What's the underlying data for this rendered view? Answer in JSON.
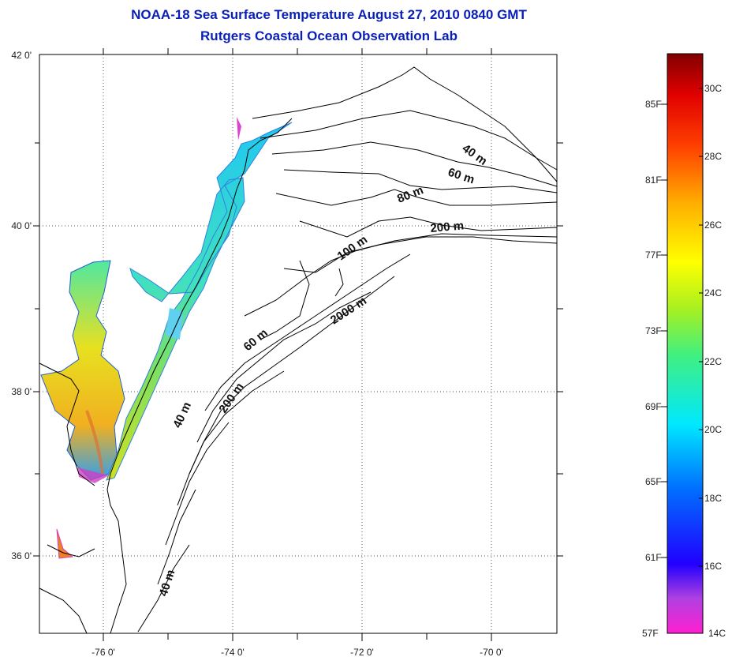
{
  "title": {
    "line1": "NOAA-18 Sea Surface Temperature August 27, 2010 0840 GMT",
    "line2": "Rutgers Coastal Ocean Observation Lab"
  },
  "lat_labels": [
    "42 0'",
    "40 0'",
    "38 0'",
    "36 0'"
  ],
  "lon_labels": [
    "-76 0'",
    "-74 0'",
    "-72 0'",
    "-70 0'"
  ],
  "contour_labels": [
    "40 m",
    "60 m",
    "80 m",
    "200 m",
    "100 m",
    "2000 m",
    "60 m",
    "200 m",
    "40 m",
    "40 m"
  ],
  "colorbar": {
    "fahrenheit": [
      "85F",
      "81F",
      "77F",
      "73F",
      "69F",
      "65F",
      "61F",
      "57F"
    ],
    "celsius": [
      "30C",
      "28C",
      "26C",
      "24C",
      "22C",
      "20C",
      "18C",
      "16C",
      "14C"
    ],
    "range_c": [
      14,
      31
    ]
  },
  "colors": {
    "title": "#0a1fb8",
    "coast": "#000000",
    "grid": "#555555"
  }
}
